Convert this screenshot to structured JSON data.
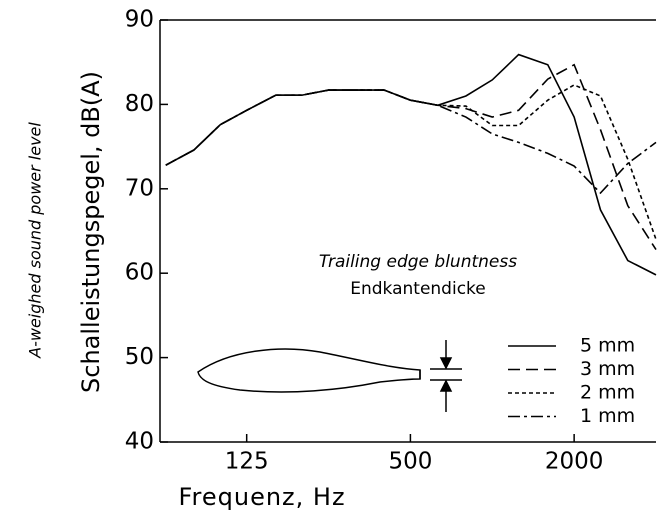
{
  "chart_data": {
    "type": "line",
    "y_label": "Schalleistungspegel, dB(A)",
    "y_label_2": "A-weighed sound power level",
    "x_label": "Frequenz, Hz",
    "annotation": "Trailing edge bluntness",
    "annotation_2": "Endkantendicke",
    "x": [
      63,
      80,
      100,
      125,
      160,
      200,
      250,
      315,
      400,
      500,
      630,
      800,
      1000,
      1250,
      1600,
      2000,
      2500,
      3150,
      4000
    ],
    "xscale": "log",
    "xlim": [
      60,
      4000
    ],
    "xticks": [
      125,
      500,
      2000
    ],
    "ylim": [
      40,
      90
    ],
    "yticks": [
      40,
      50,
      60,
      70,
      80,
      90
    ],
    "series": [
      {
        "name": "5 mm",
        "color": "#000000",
        "dash": "solid",
        "values": [
          72.8,
          74.6,
          77.6,
          79.3,
          81.1,
          81.1,
          81.7,
          81.7,
          81.7,
          80.5,
          79.9,
          81,
          82.9,
          85.9,
          84.7,
          78.5,
          67.5,
          61.5,
          59.8
        ]
      },
      {
        "name": "3 mm",
        "color": "#000000",
        "dash": "dashed",
        "values": [
          72.8,
          74.6,
          77.6,
          79.3,
          81.1,
          81.1,
          81.7,
          81.7,
          81.7,
          80.5,
          79.9,
          79.5,
          78.5,
          79.3,
          83,
          84.7,
          77,
          68,
          62.8
        ]
      },
      {
        "name": "2 mm",
        "color": "#000000",
        "dash": "dotted",
        "values": [
          72.8,
          74.6,
          77.6,
          79.3,
          81.1,
          81.1,
          81.7,
          81.7,
          81.7,
          80.5,
          79.9,
          79.8,
          77.5,
          77.5,
          80.5,
          82.3,
          81,
          73.5,
          64
        ]
      },
      {
        "name": "1 mm",
        "color": "#000000",
        "dash": "dashdot",
        "values": [
          72.8,
          74.6,
          77.6,
          79.3,
          81.1,
          81.1,
          81.7,
          81.7,
          81.7,
          80.5,
          79.9,
          78.5,
          76.5,
          75.5,
          74.2,
          72.7,
          69.5,
          73,
          75.5
        ]
      }
    ]
  }
}
